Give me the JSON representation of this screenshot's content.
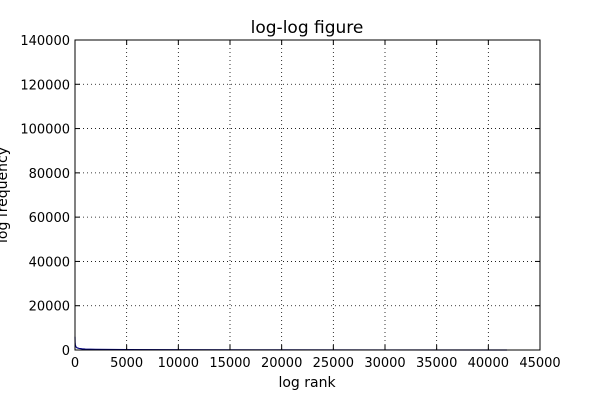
{
  "chart_data": {
    "type": "line",
    "title": "log-log figure",
    "xlabel": "log rank",
    "ylabel": "log frequency",
    "xlim": [
      0,
      45000
    ],
    "ylim": [
      0,
      140000
    ],
    "xticks": [
      0,
      5000,
      10000,
      15000,
      20000,
      25000,
      30000,
      35000,
      40000,
      45000
    ],
    "yticks": [
      0,
      20000,
      40000,
      60000,
      80000,
      100000,
      120000,
      140000
    ],
    "xtick_labels": [
      "0",
      "5000",
      "10000",
      "15000",
      "20000",
      "25000",
      "30000",
      "35000",
      "40000",
      "45000"
    ],
    "ytick_labels": [
      "0",
      "20000",
      "40000",
      "60000",
      "80000",
      "100000",
      "120000",
      "140000"
    ],
    "grid": true,
    "colors": {
      "line": "#000080",
      "frame": "#000000",
      "background": "#ffffff"
    },
    "series": [
      {
        "x": [
          1,
          10,
          30,
          60,
          100,
          200,
          400,
          700,
          1000,
          2000,
          5000,
          10000,
          20000,
          30000,
          41800
        ],
        "values": [
          6000,
          3500,
          2500,
          1800,
          1400,
          1000,
          700,
          500,
          400,
          300,
          200,
          120,
          60,
          30,
          1
        ]
      }
    ]
  }
}
